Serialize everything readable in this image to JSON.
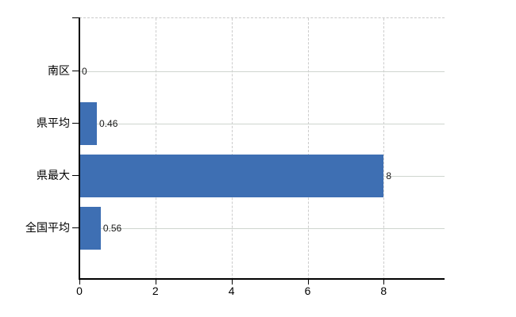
{
  "chart_data": {
    "type": "bar",
    "orientation": "horizontal",
    "title": "",
    "xlabel": "",
    "ylabel": "",
    "categories": [
      "南区",
      "県平均",
      "県最大",
      "全国平均"
    ],
    "values": [
      0,
      0.46,
      8,
      0.56
    ],
    "data_labels": [
      "0",
      "0.46",
      "8",
      "0.56"
    ],
    "x_ticks": [
      {
        "value": 0,
        "label": "0"
      },
      {
        "value": 2,
        "label": "2"
      },
      {
        "value": 4,
        "label": "4"
      },
      {
        "value": 6,
        "label": "6"
      },
      {
        "value": 8,
        "label": "8"
      }
    ],
    "xlim": [
      0,
      9.6
    ],
    "grid": {
      "vertical_gridlines": "dashed",
      "horizontal_gridlines": "solid",
      "plot_top_border": "dashed"
    },
    "legend_position": "none",
    "colors": {
      "bar": "#3E6FB3",
      "axis": "#000000",
      "horizontal_gridline": "#CFD5CF",
      "vertical_gridline": "#CCCCCC",
      "top_border": "#C9C9C9",
      "category_text": "#000000",
      "data_label_text": "#1A1A1A",
      "tick_label_text": "#000000",
      "background": "#FFFFFF"
    }
  }
}
